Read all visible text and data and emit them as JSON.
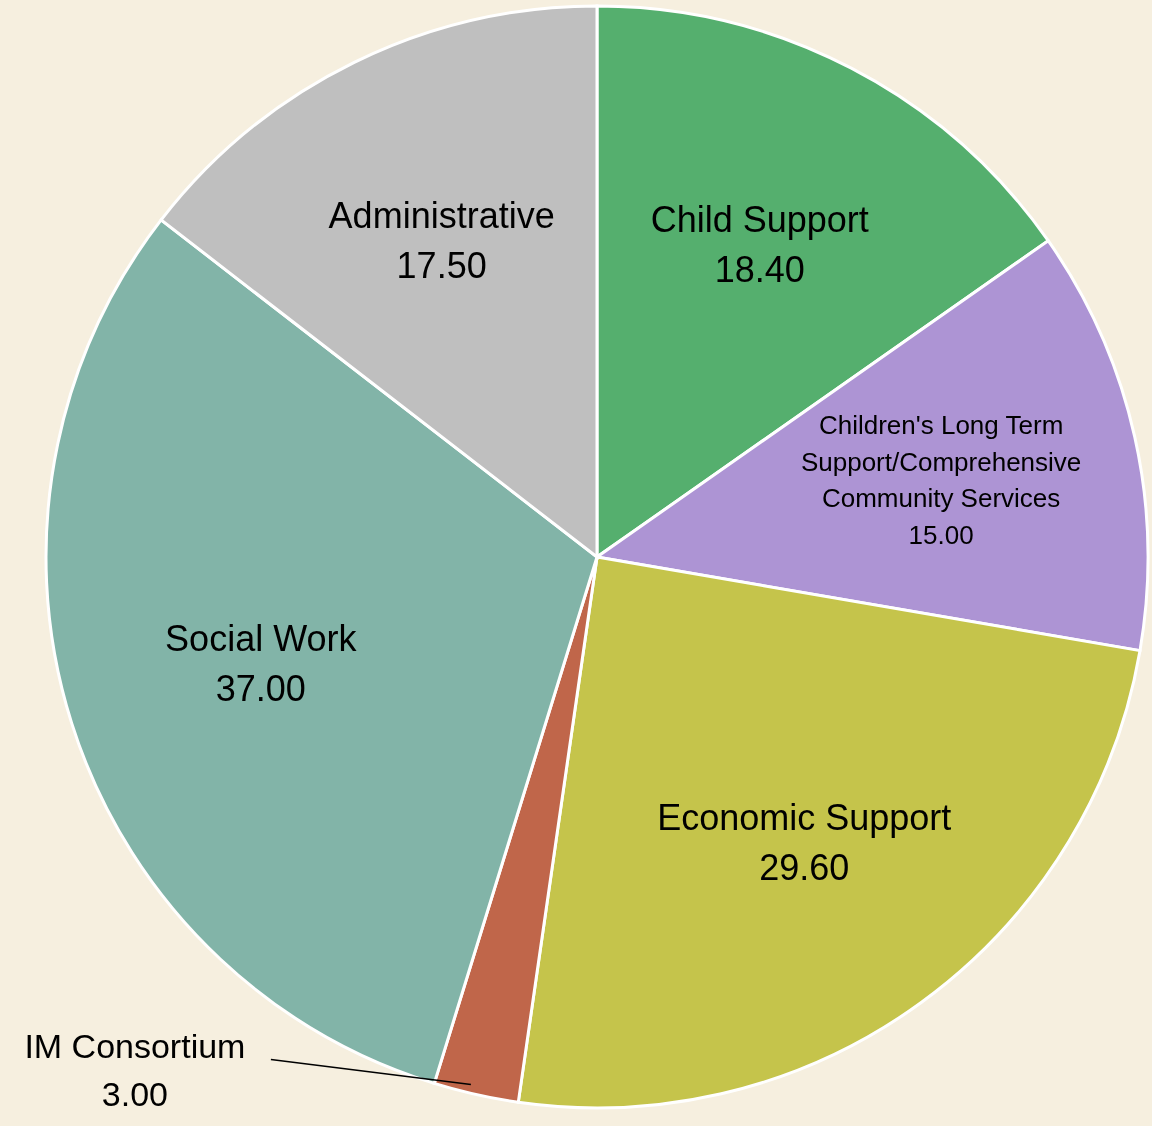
{
  "chart_data": {
    "type": "pie",
    "categories": [
      "Child Support",
      "Children's Long Term Support/Comprehensive Community Services",
      "Economic Support",
      "IM Consortium",
      "Social Work",
      "Administrative"
    ],
    "values": [
      18.4,
      15.0,
      29.6,
      3.0,
      37.0,
      17.5
    ],
    "value_labels": [
      "18.40",
      "15.00",
      "29.60",
      "3.00",
      "37.00",
      "17.50"
    ],
    "colors": [
      "#55af6e",
      "#ad94d4",
      "#c5c44b",
      "#c0664a",
      "#82b4a8",
      "#bfbfbf"
    ]
  }
}
